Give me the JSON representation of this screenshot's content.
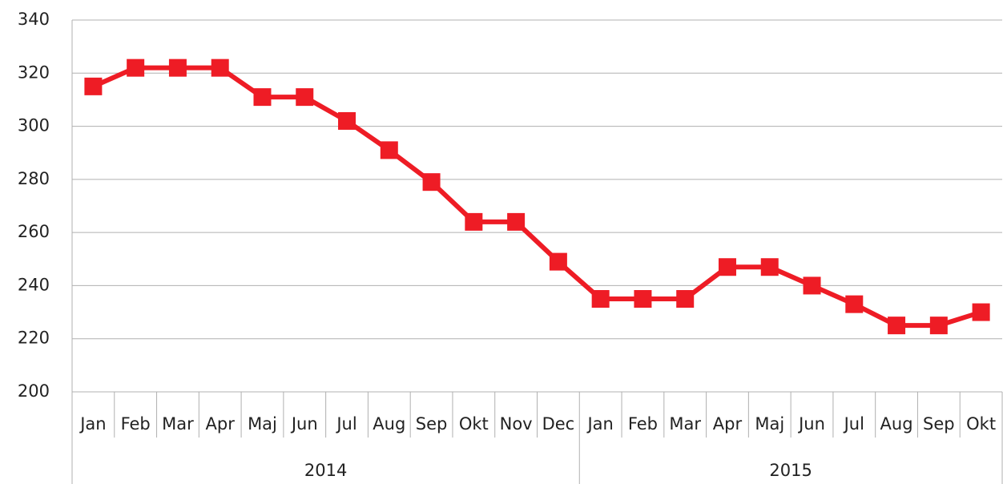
{
  "chart_data": {
    "type": "line",
    "groups": [
      {
        "name": "2014",
        "categories": [
          "Jan",
          "Feb",
          "Mar",
          "Apr",
          "Maj",
          "Jun",
          "Jul",
          "Aug",
          "Sep",
          "Okt",
          "Nov",
          "Dec"
        ]
      },
      {
        "name": "2015",
        "categories": [
          "Jan",
          "Feb",
          "Mar",
          "Apr",
          "Maj",
          "Jun",
          "Jul",
          "Aug",
          "Sep",
          "Okt"
        ]
      }
    ],
    "values": [
      315,
      322,
      322,
      322,
      311,
      311,
      302,
      291,
      279,
      264,
      264,
      249,
      235,
      235,
      235,
      247,
      247,
      240,
      233,
      225,
      225,
      230
    ],
    "color": "#ee1c25",
    "ylim": [
      200,
      340
    ],
    "yticks": [
      200,
      220,
      240,
      260,
      280,
      300,
      320,
      340
    ],
    "grid": true
  }
}
